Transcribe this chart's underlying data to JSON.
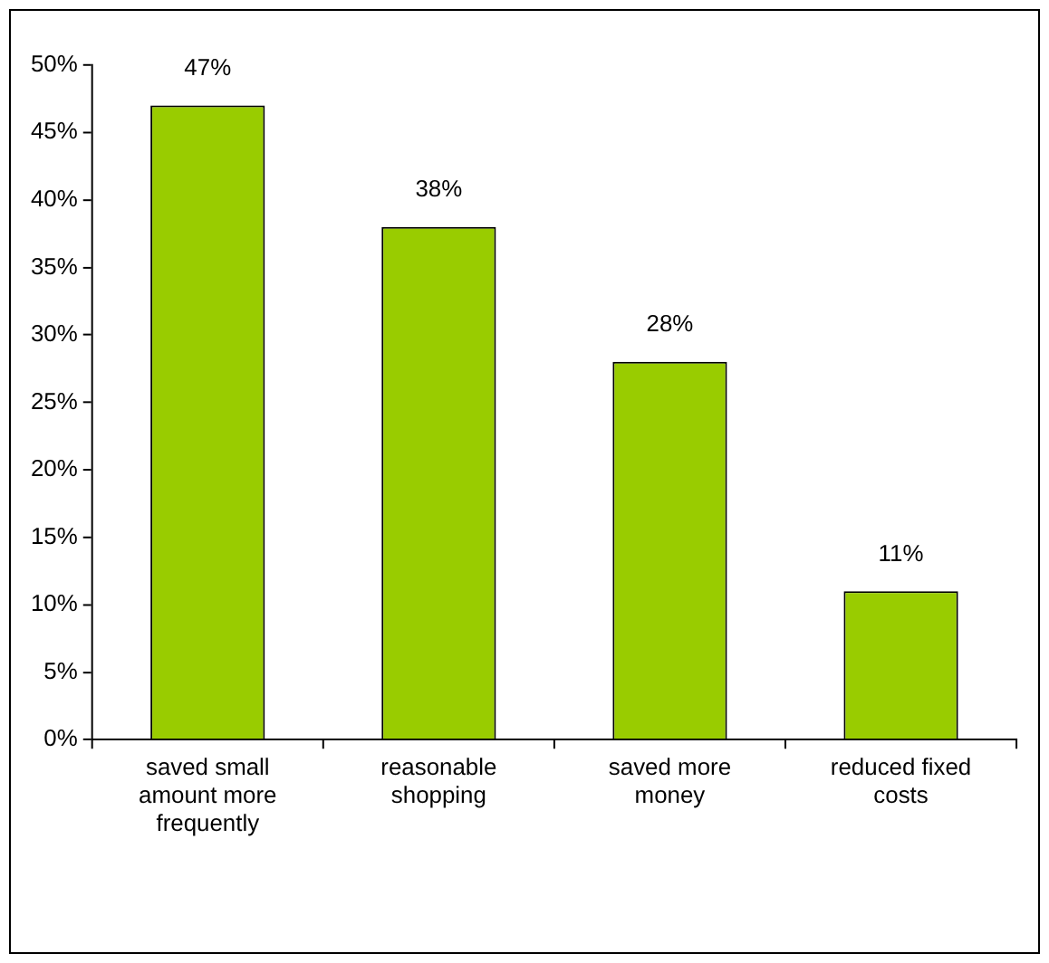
{
  "chart_data": {
    "type": "bar",
    "categories": [
      "saved small amount more frequently",
      "reasonable shopping",
      "saved more money",
      "reduced fixed costs"
    ],
    "values": [
      47,
      38,
      28,
      11
    ],
    "color": "#99cc00",
    "value_labels": [
      "47%",
      "38%",
      "28%",
      "11%"
    ],
    "ylim": [
      0,
      50
    ],
    "yticks": [
      {
        "value": 0,
        "label": "0%"
      },
      {
        "value": 5,
        "label": "5%"
      },
      {
        "value": 10,
        "label": "10%"
      },
      {
        "value": 15,
        "label": "15%"
      },
      {
        "value": 20,
        "label": "20%"
      },
      {
        "value": 25,
        "label": "25%"
      },
      {
        "value": 30,
        "label": "30%"
      },
      {
        "value": 35,
        "label": "35%"
      },
      {
        "value": 40,
        "label": "40%"
      },
      {
        "value": 45,
        "label": "45%"
      },
      {
        "value": 50,
        "label": "50%"
      }
    ],
    "grid": false,
    "legend": false
  }
}
